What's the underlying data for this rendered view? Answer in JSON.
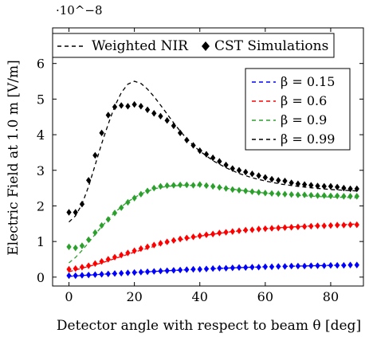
{
  "chart_data": {
    "type": "line",
    "title": "",
    "scale_note": "·10^−8",
    "xlabel": "Detector angle with respect to beam θ [deg]",
    "ylabel": "Electric Field at 1.0 m [V/m]",
    "xlim": [
      -5,
      90
    ],
    "ylim": [
      -0.25,
      7.0
    ],
    "xticks": [
      0,
      20,
      40,
      60,
      80
    ],
    "yticks": [
      0,
      1,
      2,
      3,
      4,
      5,
      6
    ],
    "legend_style": {
      "labels": [
        "Weighted NIR",
        "CST Simulations"
      ],
      "placement": "top"
    },
    "legend_beta": {
      "labels": [
        "β = 0.15",
        "β = 0.6",
        "β = 0.9",
        "β = 0.99"
      ],
      "placement": "top-right"
    },
    "colors": {
      "beta_0_15": "#0000ff",
      "beta_0_6": "#ff0000",
      "beta_0_9": "#2ca02c",
      "beta_0_99": "#000000"
    },
    "series": [
      {
        "name": "β = 0.15",
        "color": "#0000ff",
        "nir_x": [
          0,
          10,
          20,
          30,
          40,
          50,
          60,
          70,
          80,
          88
        ],
        "nir_y": [
          0.02,
          0.08,
          0.13,
          0.18,
          0.22,
          0.26,
          0.29,
          0.31,
          0.33,
          0.34
        ],
        "cst_x": [
          0,
          2,
          4,
          6,
          8,
          10,
          12,
          14,
          16,
          18,
          20,
          22,
          24,
          26,
          28,
          30,
          32,
          34,
          36,
          38,
          40,
          42,
          44,
          46,
          48,
          50,
          52,
          54,
          56,
          58,
          60,
          62,
          64,
          66,
          68,
          70,
          72,
          74,
          76,
          78,
          80,
          82,
          84,
          86,
          88
        ],
        "cst_y": [
          0.04,
          0.04,
          0.05,
          0.06,
          0.07,
          0.08,
          0.09,
          0.1,
          0.11,
          0.12,
          0.13,
          0.14,
          0.15,
          0.16,
          0.17,
          0.18,
          0.19,
          0.2,
          0.21,
          0.22,
          0.22,
          0.23,
          0.24,
          0.25,
          0.25,
          0.26,
          0.27,
          0.27,
          0.28,
          0.28,
          0.29,
          0.29,
          0.3,
          0.3,
          0.31,
          0.31,
          0.31,
          0.32,
          0.32,
          0.32,
          0.33,
          0.33,
          0.33,
          0.34,
          0.34
        ]
      },
      {
        "name": "β = 0.6",
        "color": "#ff0000",
        "nir_x": [
          0,
          10,
          20,
          30,
          40,
          50,
          60,
          70,
          80,
          88
        ],
        "nir_y": [
          0.15,
          0.4,
          0.7,
          0.97,
          1.15,
          1.28,
          1.36,
          1.42,
          1.46,
          1.49
        ],
        "cst_x": [
          0,
          2,
          4,
          6,
          8,
          10,
          12,
          14,
          16,
          18,
          20,
          22,
          24,
          26,
          28,
          30,
          32,
          34,
          36,
          38,
          40,
          42,
          44,
          46,
          48,
          50,
          52,
          54,
          56,
          58,
          60,
          62,
          64,
          66,
          68,
          70,
          72,
          74,
          76,
          78,
          80,
          82,
          84,
          86,
          88
        ],
        "cst_y": [
          0.22,
          0.24,
          0.28,
          0.32,
          0.38,
          0.44,
          0.5,
          0.56,
          0.62,
          0.68,
          0.74,
          0.8,
          0.85,
          0.9,
          0.95,
          0.99,
          1.03,
          1.07,
          1.1,
          1.13,
          1.16,
          1.19,
          1.21,
          1.24,
          1.26,
          1.28,
          1.3,
          1.32,
          1.33,
          1.35,
          1.36,
          1.37,
          1.38,
          1.39,
          1.4,
          1.41,
          1.42,
          1.43,
          1.44,
          1.44,
          1.45,
          1.46,
          1.46,
          1.47,
          1.47
        ]
      },
      {
        "name": "β = 0.9",
        "color": "#2ca02c",
        "nir_x": [
          0,
          2,
          4,
          6,
          8,
          10,
          14,
          18,
          22,
          26,
          30,
          35,
          40,
          45,
          50,
          55,
          60,
          65,
          70,
          75,
          80,
          84,
          88
        ],
        "nir_y": [
          0.4,
          0.55,
          0.75,
          0.97,
          1.2,
          1.42,
          1.82,
          2.12,
          2.34,
          2.48,
          2.55,
          2.58,
          2.57,
          2.53,
          2.47,
          2.41,
          2.36,
          2.32,
          2.29,
          2.27,
          2.25,
          2.24,
          2.23
        ],
        "cst_x": [
          0,
          2,
          4,
          6,
          8,
          10,
          12,
          14,
          16,
          18,
          20,
          22,
          24,
          26,
          28,
          30,
          32,
          34,
          36,
          38,
          40,
          42,
          44,
          46,
          48,
          50,
          52,
          54,
          56,
          58,
          60,
          62,
          64,
          66,
          68,
          70,
          72,
          74,
          76,
          78,
          80,
          82,
          84,
          86,
          88
        ],
        "cst_y": [
          0.85,
          0.82,
          0.88,
          1.05,
          1.25,
          1.45,
          1.62,
          1.8,
          1.95,
          2.1,
          2.22,
          2.33,
          2.42,
          2.5,
          2.55,
          2.57,
          2.58,
          2.59,
          2.59,
          2.58,
          2.6,
          2.57,
          2.55,
          2.52,
          2.49,
          2.46,
          2.44,
          2.42,
          2.4,
          2.38,
          2.36,
          2.35,
          2.34,
          2.33,
          2.32,
          2.31,
          2.31,
          2.3,
          2.29,
          2.29,
          2.28,
          2.28,
          2.27,
          2.27,
          2.27
        ]
      },
      {
        "name": "β = 0.99",
        "color": "#000000",
        "nir_x": [
          0,
          2,
          4,
          6,
          8,
          10,
          12,
          14,
          16,
          18,
          20,
          22,
          24,
          26,
          28,
          30,
          32,
          34,
          36,
          38,
          40,
          44,
          48,
          52,
          56,
          60,
          65,
          70,
          75,
          80,
          84,
          88
        ],
        "nir_y": [
          1.55,
          1.72,
          2.05,
          2.55,
          3.15,
          3.75,
          4.3,
          4.8,
          5.18,
          5.42,
          5.5,
          5.44,
          5.28,
          5.07,
          4.83,
          4.58,
          4.33,
          4.1,
          3.89,
          3.7,
          3.54,
          3.27,
          3.07,
          2.91,
          2.79,
          2.7,
          2.61,
          2.55,
          2.5,
          2.46,
          2.44,
          2.42
        ],
        "cst_x": [
          0,
          2,
          4,
          6,
          8,
          10,
          12,
          14,
          16,
          18,
          20,
          22,
          24,
          26,
          28,
          30,
          32,
          34,
          36,
          38,
          40,
          42,
          44,
          46,
          48,
          50,
          52,
          54,
          56,
          58,
          60,
          62,
          64,
          66,
          68,
          70,
          72,
          74,
          76,
          78,
          80,
          82,
          84,
          86,
          88
        ],
        "cst_y": [
          1.82,
          1.82,
          2.05,
          2.72,
          3.42,
          4.05,
          4.55,
          4.78,
          4.82,
          4.8,
          4.85,
          4.8,
          4.7,
          4.6,
          4.52,
          4.4,
          4.25,
          4.05,
          3.85,
          3.7,
          3.55,
          3.45,
          3.35,
          3.25,
          3.15,
          3.05,
          3.0,
          2.95,
          2.9,
          2.85,
          2.8,
          2.75,
          2.72,
          2.7,
          2.65,
          2.62,
          2.6,
          2.58,
          2.56,
          2.55,
          2.55,
          2.53,
          2.5,
          2.48,
          2.48
        ]
      }
    ]
  }
}
